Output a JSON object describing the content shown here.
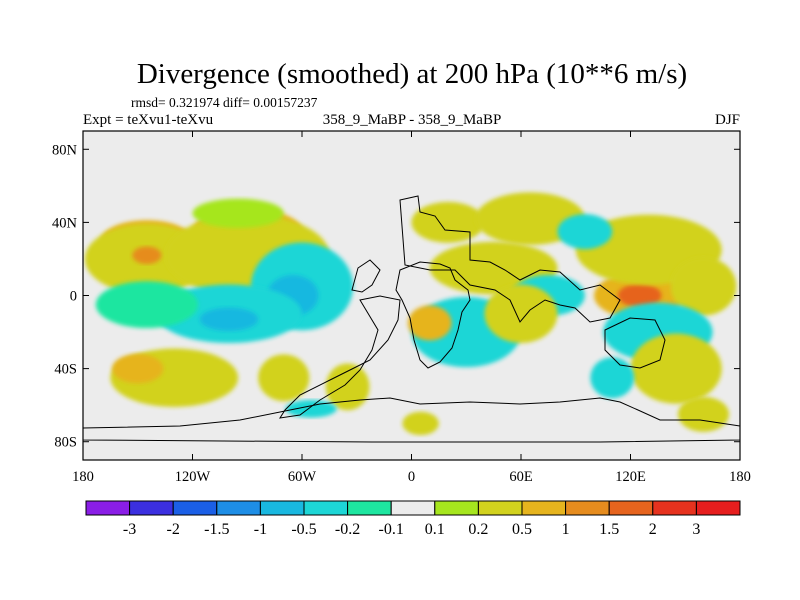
{
  "chart_data": {
    "type": "heatmap",
    "title": "Divergence (smoothed) at 200 hPa (10**6 m/s)",
    "stats_label": "rmsd= 0.321974 diff= 0.00157237",
    "left_label": "Expt = teXvu1-teXvu",
    "center_label": "358_9_MaBP - 358_9_MaBP",
    "right_label": "DJF",
    "xlim": [
      -180,
      180
    ],
    "ylim": [
      -90,
      90
    ],
    "x_ticks": [
      {
        "value": -180,
        "label": "180"
      },
      {
        "value": -120,
        "label": "120W"
      },
      {
        "value": -60,
        "label": "60W"
      },
      {
        "value": 0,
        "label": "0"
      },
      {
        "value": 60,
        "label": "60E"
      },
      {
        "value": 120,
        "label": "120E"
      },
      {
        "value": 180,
        "label": "180"
      }
    ],
    "y_ticks": [
      {
        "value": 80,
        "label": "80N"
      },
      {
        "value": 40,
        "label": "40N"
      },
      {
        "value": 0,
        "label": "0"
      },
      {
        "value": -40,
        "label": "40S"
      },
      {
        "value": -80,
        "label": "80S"
      }
    ],
    "contour_levels": [
      "-3",
      "-2",
      "-1.5",
      "-1",
      "-0.5",
      "-0.2",
      "-0.1",
      "0.1",
      "0.2",
      "0.5",
      "1",
      "1.5",
      "2",
      "3"
    ],
    "colorbar_colors": [
      "#8a1ee6",
      "#3b2fe0",
      "#1b5fe6",
      "#1e8ee6",
      "#19b8e0",
      "#1dd6d6",
      "#1ee6a0",
      "#ececec",
      "#a6e61e",
      "#d2d21e",
      "#e6b41e",
      "#e68c1e",
      "#e6641e",
      "#e6321e",
      "#e61e1e"
    ],
    "background_color": "#ececec",
    "field_blobs": [
      {
        "lon": -145,
        "lat": 30,
        "rx": 25,
        "ry": 7,
        "level": "0.5"
      },
      {
        "lon": -145,
        "lat": 20,
        "rx": 34,
        "ry": 12,
        "level": "0.2"
      },
      {
        "lon": -90,
        "lat": 35,
        "rx": 30,
        "ry": 8,
        "level": "0.5"
      },
      {
        "lon": -90,
        "lat": 22,
        "rx": 45,
        "ry": 14,
        "level": "0.2"
      },
      {
        "lon": -95,
        "lat": 45,
        "rx": 25,
        "ry": 5,
        "level": "0.1"
      },
      {
        "lon": -145,
        "lat": 22,
        "rx": 8,
        "ry": 3,
        "level": "1"
      },
      {
        "lon": -60,
        "lat": 5,
        "rx": 28,
        "ry": 15,
        "level": "-0.2"
      },
      {
        "lon": -65,
        "lat": 0,
        "rx": 14,
        "ry": 7,
        "level": "-0.5"
      },
      {
        "lon": -100,
        "lat": -10,
        "rx": 40,
        "ry": 10,
        "level": "-0.2"
      },
      {
        "lon": -100,
        "lat": -13,
        "rx": 16,
        "ry": 4,
        "level": "-0.5"
      },
      {
        "lon": -145,
        "lat": -5,
        "rx": 28,
        "ry": 8,
        "level": "-0.1"
      },
      {
        "lon": -130,
        "lat": -45,
        "rx": 35,
        "ry": 10,
        "level": "0.2"
      },
      {
        "lon": -150,
        "lat": -40,
        "rx": 14,
        "ry": 5,
        "level": "0.5"
      },
      {
        "lon": -70,
        "lat": -45,
        "rx": 14,
        "ry": 8,
        "level": "0.2"
      },
      {
        "lon": -35,
        "lat": -50,
        "rx": 12,
        "ry": 8,
        "level": "0.2"
      },
      {
        "lon": -55,
        "lat": -62,
        "rx": 14,
        "ry": 3,
        "level": "-0.2"
      },
      {
        "lon": 20,
        "lat": 40,
        "rx": 20,
        "ry": 7,
        "level": "0.2"
      },
      {
        "lon": 65,
        "lat": 42,
        "rx": 30,
        "ry": 9,
        "level": "0.2"
      },
      {
        "lon": 45,
        "lat": 15,
        "rx": 35,
        "ry": 9,
        "level": "0.2"
      },
      {
        "lon": 75,
        "lat": 0,
        "rx": 20,
        "ry": 7,
        "level": "-0.2"
      },
      {
        "lon": 30,
        "lat": -20,
        "rx": 30,
        "ry": 12,
        "level": "-0.2"
      },
      {
        "lon": 10,
        "lat": -15,
        "rx": 12,
        "ry": 6,
        "level": "0.5"
      },
      {
        "lon": 60,
        "lat": -10,
        "rx": 20,
        "ry": 10,
        "level": "0.2"
      },
      {
        "lon": 125,
        "lat": 0,
        "rx": 25,
        "ry": 8,
        "level": "0.5"
      },
      {
        "lon": 125,
        "lat": 0,
        "rx": 12,
        "ry": 4,
        "level": "1.5"
      },
      {
        "lon": 130,
        "lat": 25,
        "rx": 40,
        "ry": 12,
        "level": "0.2"
      },
      {
        "lon": 160,
        "lat": 5,
        "rx": 18,
        "ry": 10,
        "level": "0.2"
      },
      {
        "lon": 135,
        "lat": -20,
        "rx": 30,
        "ry": 10,
        "level": "-0.2"
      },
      {
        "lon": 145,
        "lat": -40,
        "rx": 25,
        "ry": 12,
        "level": "0.2"
      },
      {
        "lon": 110,
        "lat": -45,
        "rx": 12,
        "ry": 7,
        "level": "-0.2"
      },
      {
        "lon": 160,
        "lat": -65,
        "rx": 14,
        "ry": 6,
        "level": "0.2"
      },
      {
        "lon": 95,
        "lat": 35,
        "rx": 15,
        "ry": 6,
        "level": "-0.2"
      },
      {
        "lon": 5,
        "lat": -70,
        "rx": 10,
        "ry": 4,
        "level": "0.2"
      }
    ]
  }
}
